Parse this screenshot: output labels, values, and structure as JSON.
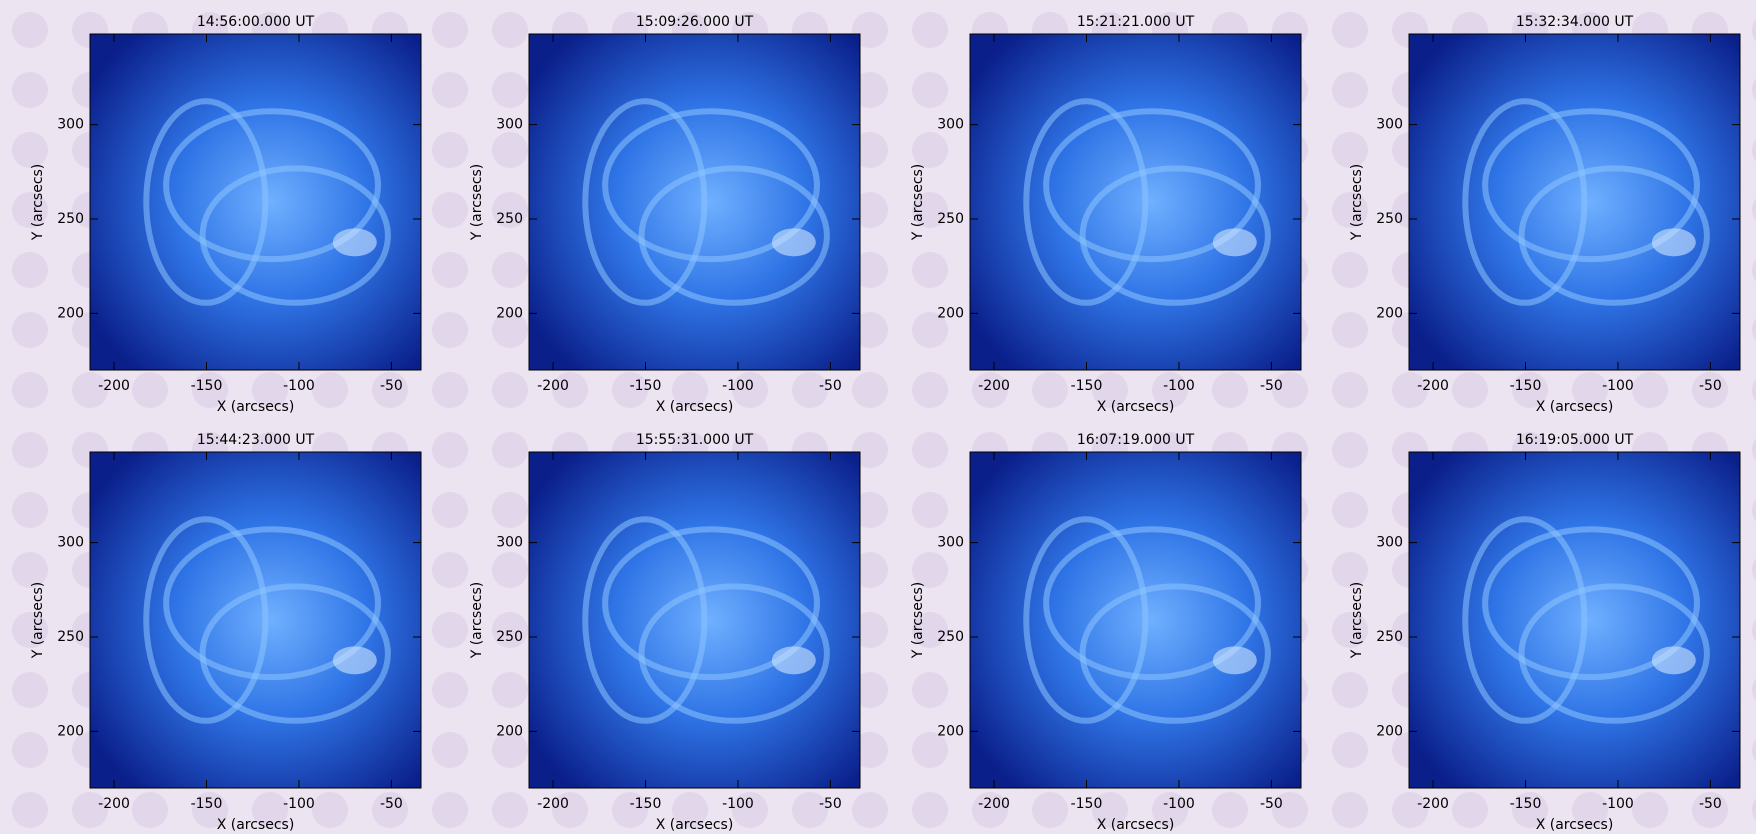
{
  "chart_data": [
    {
      "type": "image",
      "title": "14:56:00.000 UT",
      "xlabel": "X (arcsecs)",
      "ylabel": "Y (arcsecs)",
      "xlim": [
        -213,
        -34
      ],
      "ylim": [
        170,
        348
      ],
      "xticks": [
        -200,
        -150,
        -100,
        -50
      ],
      "yticks": [
        200,
        250,
        300
      ]
    },
    {
      "type": "image",
      "title": "15:09:26.000 UT",
      "xlabel": "X (arcsecs)",
      "ylabel": "Y (arcsecs)",
      "xlim": [
        -213,
        -34
      ],
      "ylim": [
        170,
        348
      ],
      "xticks": [
        -200,
        -150,
        -100,
        -50
      ],
      "yticks": [
        200,
        250,
        300
      ]
    },
    {
      "type": "image",
      "title": "15:21:21.000 UT",
      "xlabel": "X (arcsecs)",
      "ylabel": "Y (arcsecs)",
      "xlim": [
        -213,
        -34
      ],
      "ylim": [
        170,
        348
      ],
      "xticks": [
        -200,
        -150,
        -100,
        -50
      ],
      "yticks": [
        200,
        250,
        300
      ]
    },
    {
      "type": "image",
      "title": "15:32:34.000 UT",
      "xlabel": "X (arcsecs)",
      "ylabel": "Y (arcsecs)",
      "xlim": [
        -213,
        -34
      ],
      "ylim": [
        170,
        348
      ],
      "xticks": [
        -200,
        -150,
        -100,
        -50
      ],
      "yticks": [
        200,
        250,
        300
      ]
    },
    {
      "type": "image",
      "title": "15:44:23.000 UT",
      "xlabel": "X (arcsecs)",
      "ylabel": "Y (arcsecs)",
      "xlim": [
        -213,
        -34
      ],
      "ylim": [
        170,
        348
      ],
      "xticks": [
        -200,
        -150,
        -100,
        -50
      ],
      "yticks": [
        200,
        250,
        300
      ]
    },
    {
      "type": "image",
      "title": "15:55:31.000 UT",
      "xlabel": "X (arcsecs)",
      "ylabel": "Y (arcsecs)",
      "xlim": [
        -213,
        -34
      ],
      "ylim": [
        170,
        348
      ],
      "xticks": [
        -200,
        -150,
        -100,
        -50
      ],
      "yticks": [
        200,
        250,
        300
      ]
    },
    {
      "type": "image",
      "title": "16:07:19.000 UT",
      "xlabel": "X (arcsecs)",
      "ylabel": "Y (arcsecs)",
      "xlim": [
        -213,
        -34
      ],
      "ylim": [
        170,
        348
      ],
      "xticks": [
        -200,
        -150,
        -100,
        -50
      ],
      "yticks": [
        200,
        250,
        300
      ]
    },
    {
      "type": "image",
      "title": "16:19:05.000 UT",
      "xlabel": "X (arcsecs)",
      "ylabel": "Y (arcsecs)",
      "xlim": [
        -213,
        -34
      ],
      "ylim": [
        170,
        348
      ],
      "xticks": [
        -200,
        -150,
        -100,
        -50
      ],
      "yticks": [
        200,
        250,
        300
      ]
    }
  ]
}
